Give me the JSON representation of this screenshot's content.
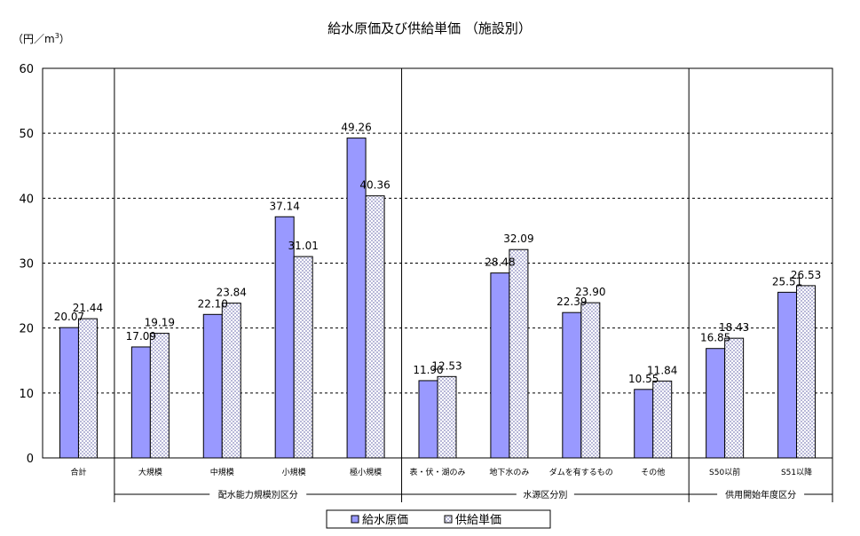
{
  "chart_data": {
    "type": "bar",
    "title": "給水原価及び供給単価 （施設別）",
    "ylabel_parts": {
      "open": "（円／m",
      "sup": "3",
      "close": "）"
    },
    "ylim": [
      0,
      60
    ],
    "yticks": [
      "0",
      "10",
      "20",
      "30",
      "40",
      "50",
      "60"
    ],
    "grid": "horizontal dashed",
    "categories": [
      "合計",
      "大規模",
      "中規模",
      "小規模",
      "極小規模",
      "表・伏・湖のみ",
      "地下水のみ",
      "ダムを有するもの",
      "その他",
      "S50以前",
      "S51以降"
    ],
    "series": [
      {
        "name": "給水原価",
        "color": "#9999ff",
        "values": [
          20.07,
          17.09,
          22.1,
          37.14,
          49.26,
          11.9,
          28.48,
          22.39,
          10.55,
          16.85,
          25.51
        ],
        "labels": [
          "20.07",
          "17.09",
          "22.10",
          "37.14",
          "49.26",
          "11.90",
          "28.48",
          "22.39",
          "10.55",
          "16.85",
          "25.51"
        ]
      },
      {
        "name": "供給単価",
        "color": "#e8e8f8",
        "values": [
          21.44,
          19.19,
          23.84,
          31.01,
          40.36,
          12.53,
          32.09,
          23.9,
          11.84,
          18.43,
          26.53
        ],
        "labels": [
          "21.44",
          "19.19",
          "23.84",
          "31.01",
          "40.36",
          "12.53",
          "32.09",
          "23.90",
          "11.84",
          "18.43",
          "26.53"
        ]
      }
    ],
    "groups": [
      {
        "label": "配水能力規模別区分",
        "from": 1,
        "to": 4
      },
      {
        "label": "水源区分別",
        "from": 5,
        "to": 8
      },
      {
        "label": "供用開始年度区分",
        "from": 9,
        "to": 10
      }
    ],
    "legend_position": "bottom-center"
  }
}
